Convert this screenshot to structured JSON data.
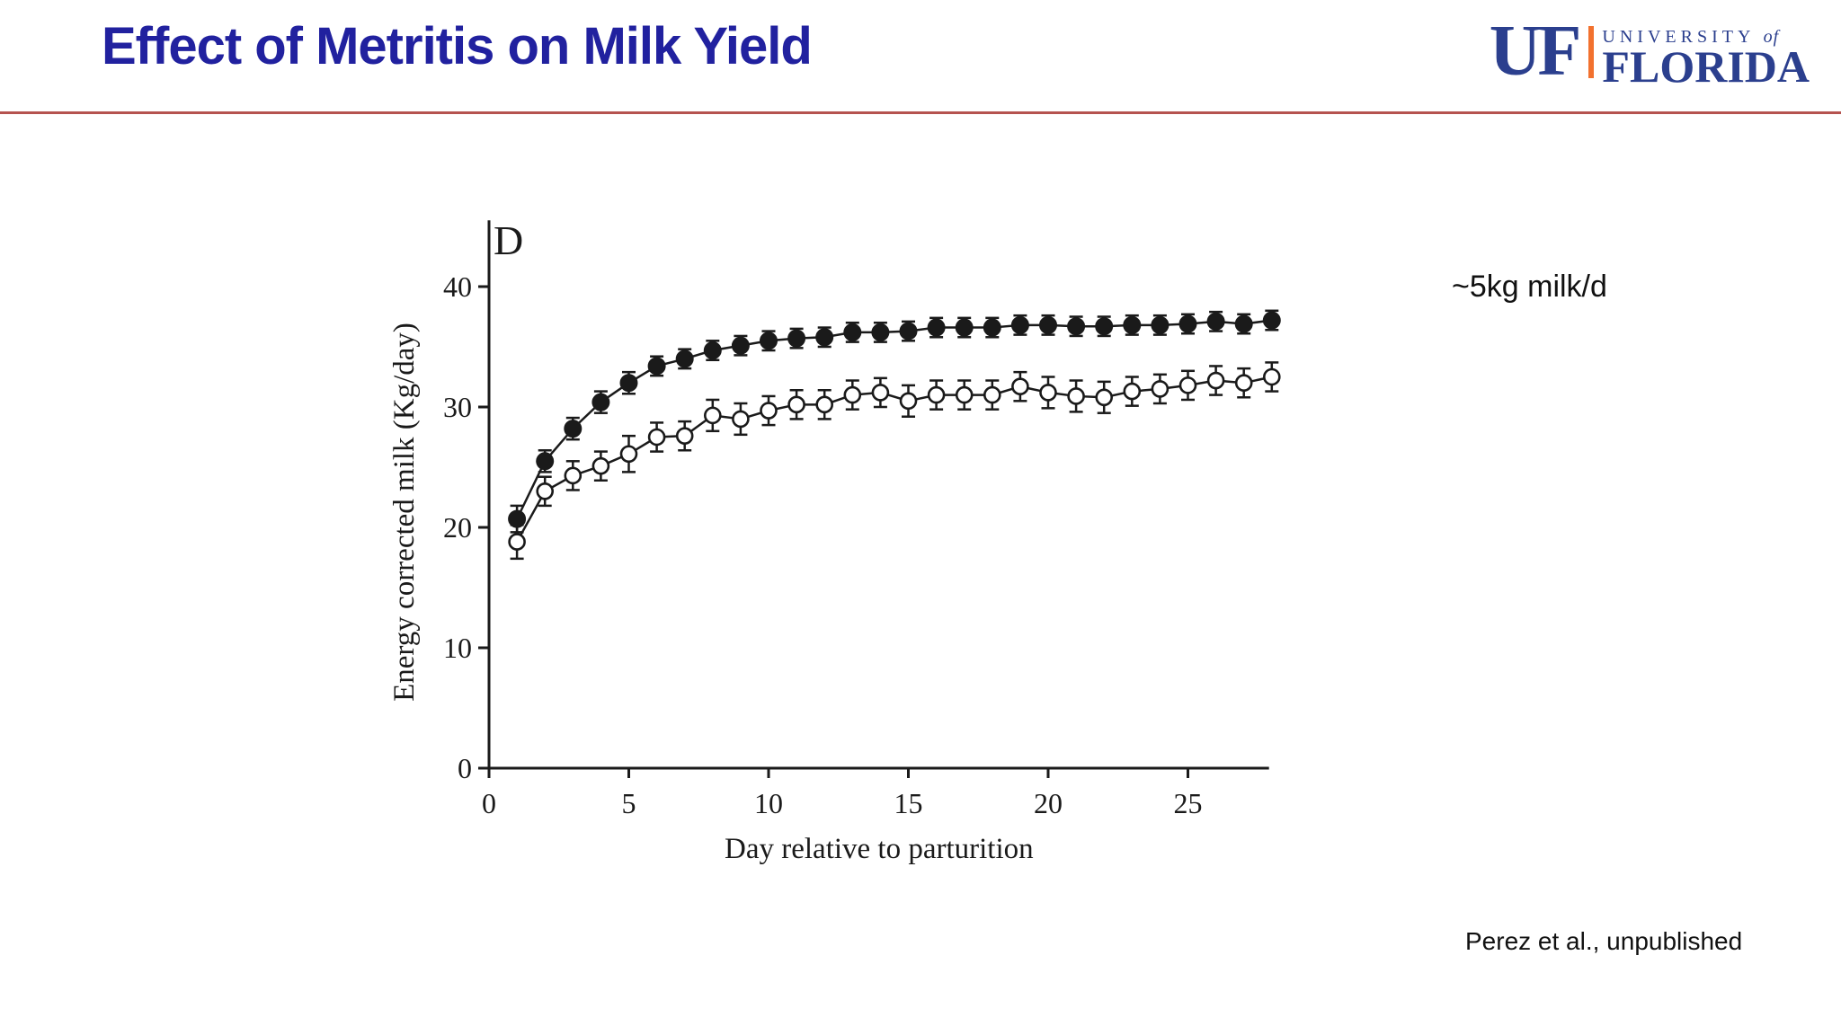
{
  "slide": {
    "title": "Effect of Metritis on Milk Yield",
    "annotation": "~5kg milk/d",
    "citation": "Perez et al., unpublished"
  },
  "logo": {
    "monogram": "UF",
    "line1": "UNIVERSITY",
    "line1_suffix": "of",
    "line2": "FLORIDA"
  },
  "colors": {
    "title_blue": "#21219f",
    "divider_red": "#b5534f",
    "logo_navy": "#2b3f8e",
    "logo_orange": "#f2712e",
    "chart_ink": "#1a1a1a"
  },
  "chart_data": {
    "type": "line",
    "panel_label": "D",
    "xlabel": "Day relative to parturition",
    "ylabel": "Energy corrected milk (Kg/day)",
    "xlim": [
      0,
      27.9
    ],
    "ylim": [
      0,
      45.5
    ],
    "xticks": [
      0,
      5,
      10,
      15,
      20,
      25
    ],
    "yticks": [
      0,
      10,
      20,
      30,
      40
    ],
    "grid": false,
    "legend": "none",
    "x": [
      1,
      2,
      3,
      4,
      5,
      6,
      7,
      8,
      9,
      10,
      11,
      12,
      13,
      14,
      15,
      16,
      17,
      18,
      19,
      20,
      21,
      22,
      23,
      24,
      25,
      26,
      27,
      28
    ],
    "series": [
      {
        "name": "filled-circles",
        "marker": "filled-circle",
        "values": [
          20.7,
          25.5,
          28.2,
          30.4,
          32.0,
          33.4,
          34.0,
          34.7,
          35.1,
          35.5,
          35.7,
          35.8,
          36.2,
          36.2,
          36.3,
          36.6,
          36.6,
          36.6,
          36.8,
          36.8,
          36.7,
          36.7,
          36.8,
          36.8,
          36.9,
          37.1,
          36.9,
          37.2
        ],
        "errors": [
          1.1,
          0.9,
          0.9,
          0.9,
          0.9,
          0.8,
          0.8,
          0.8,
          0.8,
          0.8,
          0.8,
          0.8,
          0.8,
          0.8,
          0.8,
          0.8,
          0.8,
          0.8,
          0.8,
          0.8,
          0.8,
          0.8,
          0.8,
          0.8,
          0.8,
          0.8,
          0.8,
          0.8
        ]
      },
      {
        "name": "open-circles",
        "marker": "open-circle",
        "values": [
          18.8,
          23.0,
          24.3,
          25.1,
          26.1,
          27.5,
          27.6,
          29.3,
          29.0,
          29.7,
          30.2,
          30.2,
          31.0,
          31.2,
          30.5,
          31.0,
          31.0,
          31.0,
          31.7,
          31.2,
          30.9,
          30.8,
          31.3,
          31.5,
          31.8,
          32.2,
          32.0,
          32.5
        ],
        "errors": [
          1.4,
          1.2,
          1.2,
          1.2,
          1.5,
          1.2,
          1.2,
          1.3,
          1.3,
          1.2,
          1.2,
          1.2,
          1.2,
          1.2,
          1.3,
          1.2,
          1.2,
          1.2,
          1.2,
          1.3,
          1.3,
          1.3,
          1.2,
          1.2,
          1.2,
          1.2,
          1.2,
          1.2
        ]
      }
    ]
  }
}
